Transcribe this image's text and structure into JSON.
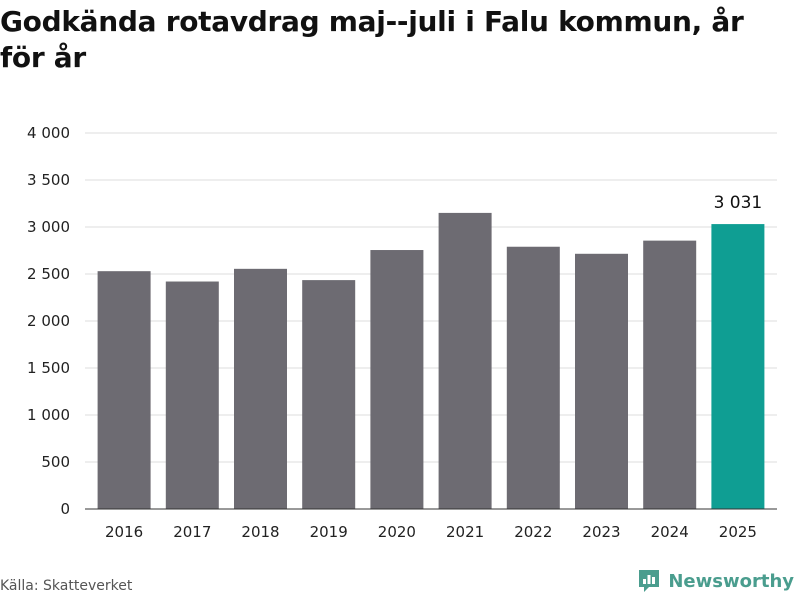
{
  "title": "Godkända rotavdrag maj--juli i Falu kommun, år för år",
  "source": "Källa: Skatteverket",
  "brand": {
    "name": "Newsworthy",
    "icon": "newsworthy-logo-icon"
  },
  "colors": {
    "bar": "#6d6b72",
    "highlight": "#0f9e93",
    "grid": "#dcdcdc",
    "axis": "#333333"
  },
  "chart_data": {
    "type": "bar",
    "categories": [
      "2016",
      "2017",
      "2018",
      "2019",
      "2020",
      "2021",
      "2022",
      "2023",
      "2024",
      "2025"
    ],
    "values": [
      2530,
      2420,
      2555,
      2435,
      2755,
      3150,
      2790,
      2715,
      2855,
      3031
    ],
    "highlight_category": "2025",
    "data_labels": [
      {
        "category": "2025",
        "text": "3 031"
      }
    ],
    "ylim": [
      0,
      4000
    ],
    "yticks": [
      0,
      500,
      1000,
      1500,
      2000,
      2500,
      3000,
      3500,
      4000
    ],
    "ytick_labels": [
      "0",
      "500",
      "1 000",
      "1 500",
      "2 000",
      "2 500",
      "3 000",
      "3 500",
      "4 000"
    ],
    "grid": true,
    "xlabel": "",
    "ylabel": ""
  }
}
